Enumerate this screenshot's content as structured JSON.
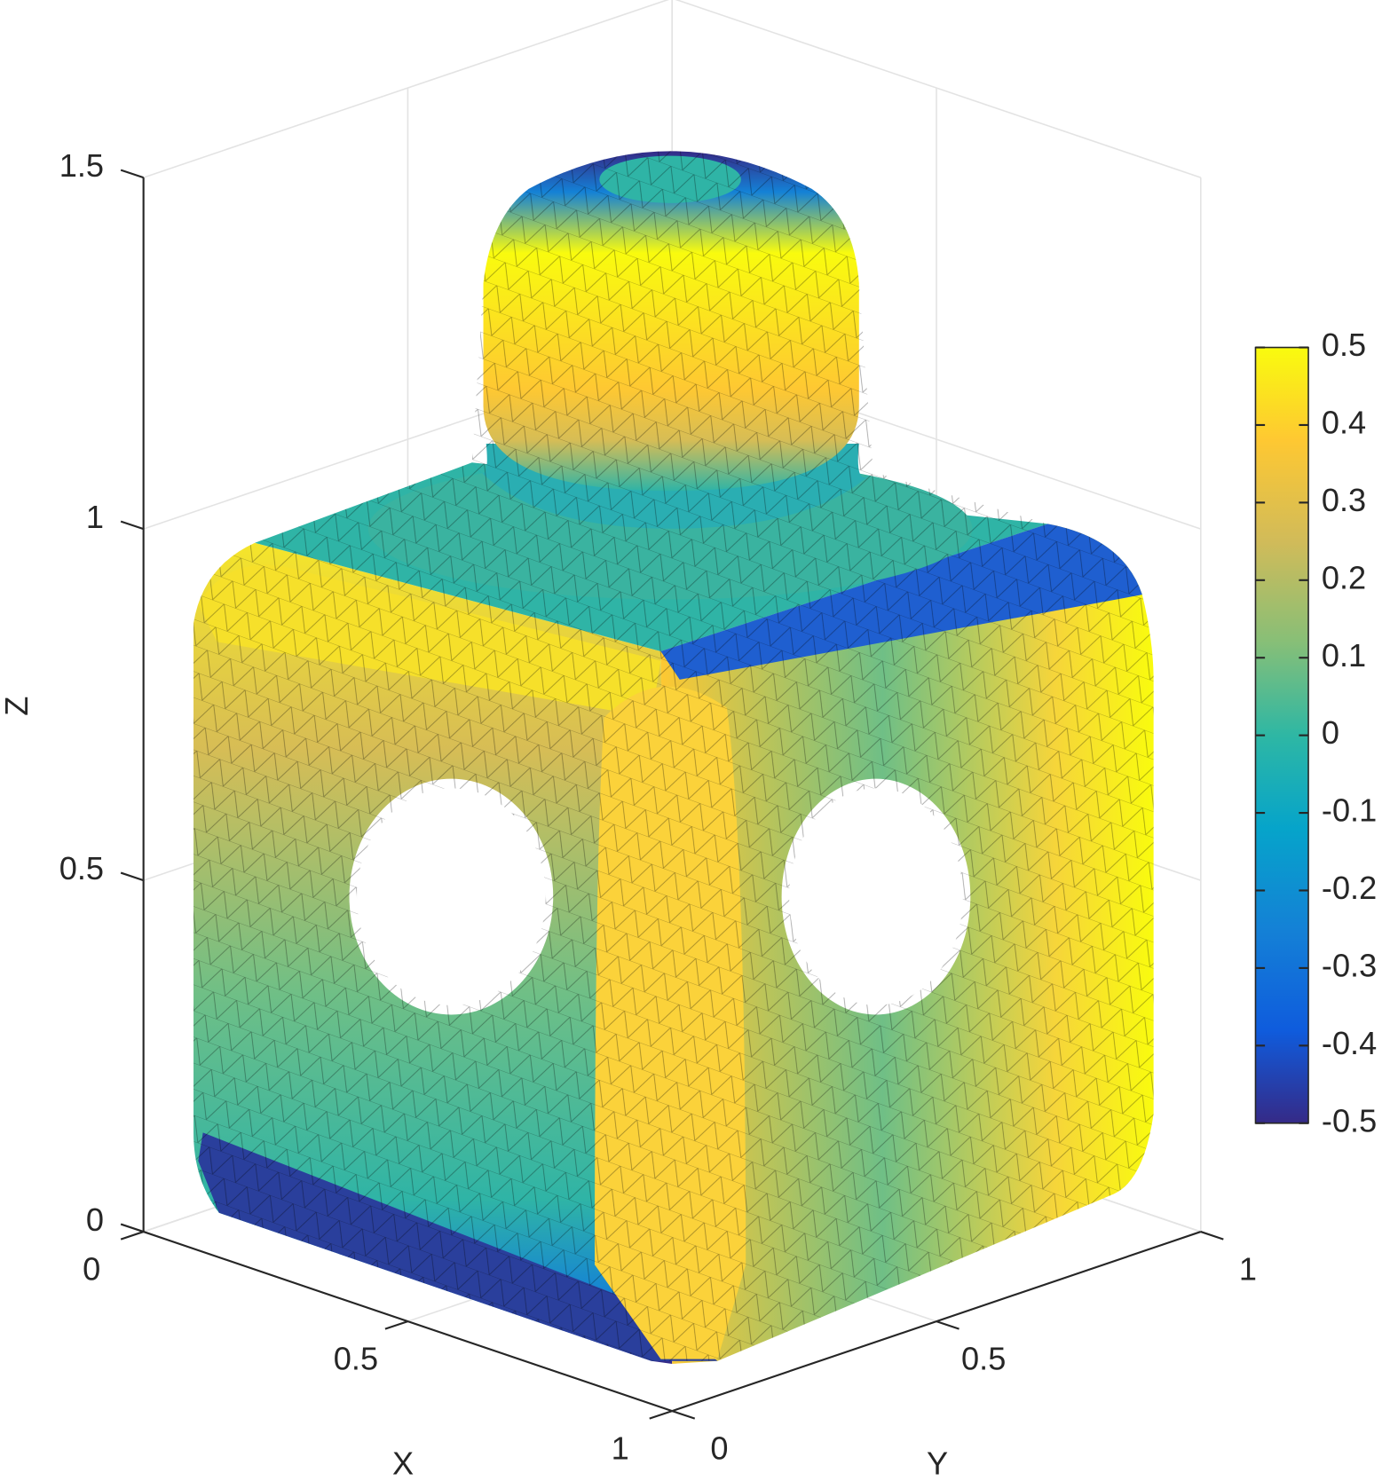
{
  "chart_data": {
    "type": "surface3d",
    "xlabel": "X",
    "ylabel": "Y",
    "zlabel": "Z",
    "xlim": [
      0,
      1
    ],
    "xticks": [
      0,
      0.5,
      1
    ],
    "ylim": [
      0,
      1
    ],
    "yticks": [
      0,
      0.5,
      1
    ],
    "zlim": [
      0,
      1.5
    ],
    "zticks": [
      0,
      0.5,
      1,
      1.5
    ],
    "grid": true,
    "colorbar": {
      "colormap": "parula",
      "clim": [
        -0.5,
        0.5
      ],
      "ticks": [
        -0.5,
        -0.4,
        -0.3,
        -0.2,
        -0.1,
        0,
        0.1,
        0.2,
        0.3,
        0.4,
        0.5
      ]
    }
  }
}
